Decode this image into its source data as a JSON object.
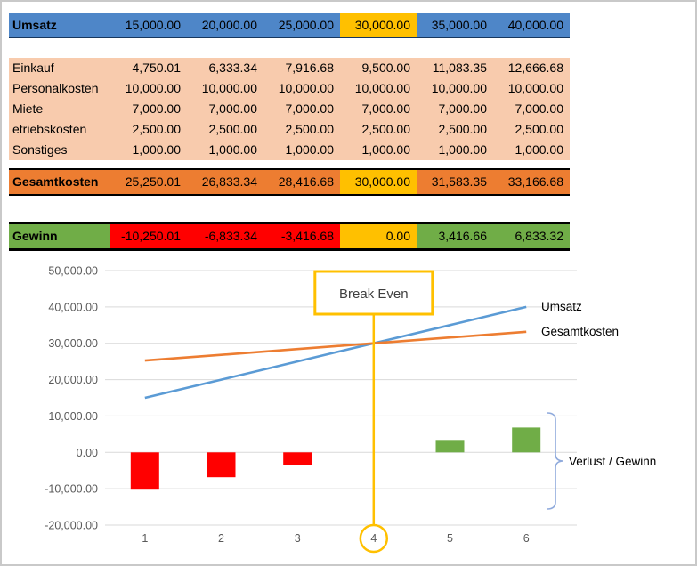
{
  "colors": {
    "header_blue": "#4E86C8",
    "peach": "#F8CBAD",
    "orange": "#ED7D31",
    "green": "#70AD47",
    "red": "#FF0000",
    "yellow": "#FFC000",
    "grid": "#D9D9D9",
    "axis_text": "#595959",
    "bracket_blue": "#8FAADC"
  },
  "table": {
    "break_even_col": 3,
    "revenue_row": {
      "label": "Umsatz",
      "values": [
        "15,000.00",
        "20,000.00",
        "25,000.00",
        "30,000.00",
        "35,000.00",
        "40,000.00"
      ]
    },
    "cost_rows": [
      {
        "label": "Einkauf",
        "values": [
          "4,750.01",
          "6,333.34",
          "7,916.68",
          "9,500.00",
          "11,083.35",
          "12,666.68"
        ]
      },
      {
        "label": "Personalkosten",
        "values": [
          "10,000.00",
          "10,000.00",
          "10,000.00",
          "10,000.00",
          "10,000.00",
          "10,000.00"
        ]
      },
      {
        "label": "Miete",
        "values": [
          "7,000.00",
          "7,000.00",
          "7,000.00",
          "7,000.00",
          "7,000.00",
          "7,000.00"
        ]
      },
      {
        "label": "etriebskosten",
        "values": [
          "2,500.00",
          "2,500.00",
          "2,500.00",
          "2,500.00",
          "2,500.00",
          "2,500.00"
        ]
      },
      {
        "label": "Sonstiges",
        "values": [
          "1,000.00",
          "1,000.00",
          "1,000.00",
          "1,000.00",
          "1,000.00",
          "1,000.00"
        ]
      }
    ],
    "total_row": {
      "label": "Gesamtkosten",
      "values": [
        "25,250.01",
        "26,833.34",
        "28,416.68",
        "30,000.00",
        "31,583.35",
        "33,166.68"
      ]
    },
    "profit_row": {
      "label": "Gewinn",
      "values": [
        "-10,250.01",
        "-6,833.34",
        "-3,416.68",
        "0.00",
        "3,416.66",
        "6,833.32"
      ]
    }
  },
  "chart_data": {
    "type": "combo",
    "x": [
      "1",
      "2",
      "3",
      "4",
      "5",
      "6"
    ],
    "series": [
      {
        "name": "Umsatz",
        "type": "line",
        "color": "#5B9BD5",
        "values": [
          15000,
          20000,
          25000,
          30000,
          35000,
          40000
        ]
      },
      {
        "name": "Gesamtkosten",
        "type": "line",
        "color": "#ED7D31",
        "values": [
          25250.01,
          26833.34,
          28416.68,
          30000,
          31583.35,
          33166.68
        ]
      },
      {
        "name": "Verlust / Gewinn",
        "type": "bar",
        "positive_color": "#70AD47",
        "negative_color": "#FF0000",
        "values": [
          -10250.01,
          -6833.34,
          -3416.68,
          0,
          3416.66,
          6833.32
        ]
      }
    ],
    "ylim": [
      -20000,
      50000
    ],
    "yticks": [
      {
        "value": 50000,
        "label": "50,000.00"
      },
      {
        "value": 40000,
        "label": "40,000.00"
      },
      {
        "value": 30000,
        "label": "30,000.00"
      },
      {
        "value": 20000,
        "label": "20,000.00"
      },
      {
        "value": 10000,
        "label": "10,000.00"
      },
      {
        "value": 0,
        "label": "0.00"
      },
      {
        "value": -10000,
        "label": "-10,000.00"
      },
      {
        "value": -20000,
        "label": "-20,000.00"
      }
    ],
    "grid": true,
    "legend": "inline-labels",
    "annotations": {
      "break_even": {
        "label": "Break Even",
        "x_index": 3
      },
      "bar_bracket_label": "Verlust / Gewinn"
    }
  }
}
